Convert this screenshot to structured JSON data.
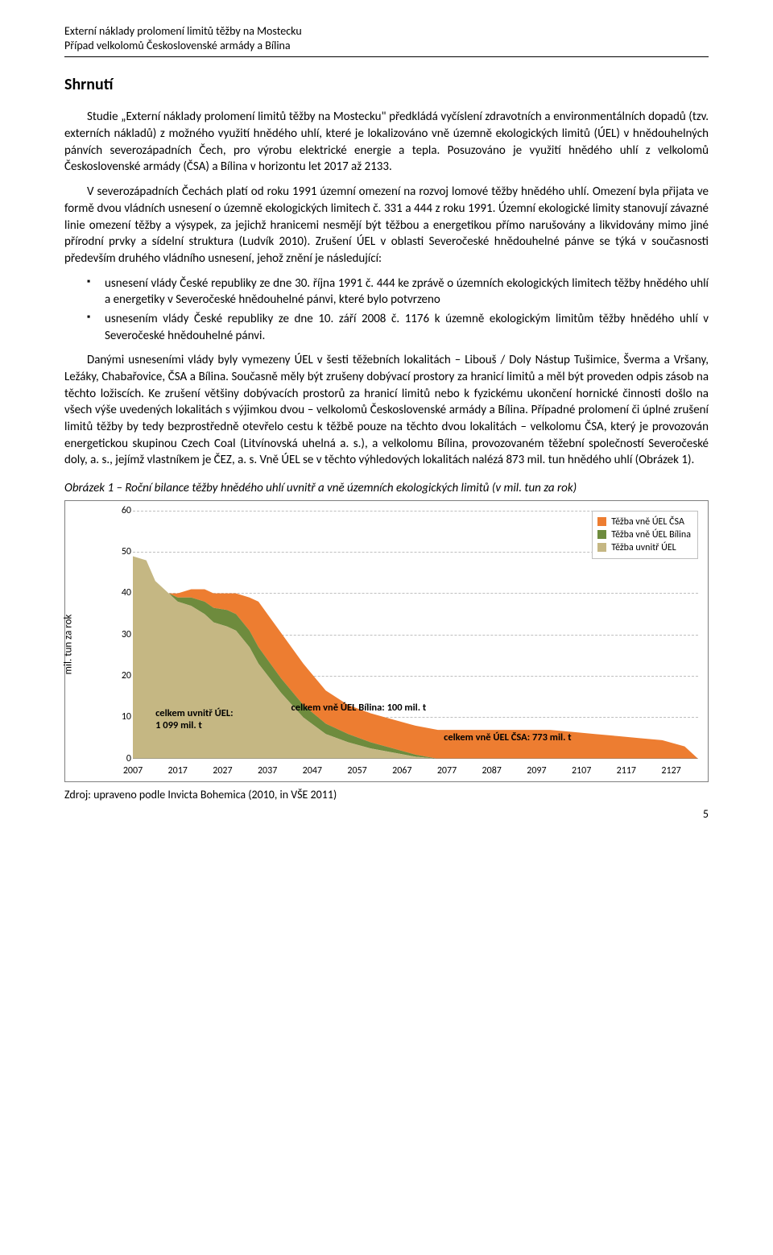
{
  "header": {
    "line1": "Externí náklady prolomení limitů těžby na Mostecku",
    "line2": "Případ velkolomů Československé armády a Bílina"
  },
  "title": "Shrnutí",
  "para1": "Studie „Externí náklady prolomení limitů těžby na Mostecku\" předkládá vyčíslení zdravotních a environmentálních dopadů (tzv. externích nákladů) z možného využití hnědého uhlí, které je lokalizováno vně územně ekologických limitů (ÚEL) v hnědouhelných pánvích severozápadních Čech, pro výrobu elektrické energie a tepla. Posuzováno je využití hnědého uhlí z velkolomů Československé armády (ČSA) a Bílina v horizontu let 2017 až 2133.",
  "para2": "V severozápadních Čechách platí od roku 1991 územní omezení na rozvoj lomové těžby hnědého uhlí. Omezení byla přijata ve formě dvou vládních usnesení o územně ekologických limitech č. 331 a 444 z roku 1991. Územní ekologické limity stanovují závazné linie omezení těžby a výsypek, za jejichž hranicemi nesmějí být těžbou a energetikou přímo narušovány a likvidovány mimo jiné přírodní prvky a sídelní struktura (Ludvík 2010). Zrušení ÚEL v oblasti Severočeské hnědouhelné pánve se týká v současnosti především druhého vládního usnesení, jehož znění je následující:",
  "bullet1": "usnesení vlády České republiky ze dne 30. října 1991 č. 444 ke zprávě o územních ekologických limitech těžby hnědého uhlí a energetiky v Severočeské hnědouhelné pánvi, které bylo potvrzeno",
  "bullet2": "usnesením vlády České republiky ze dne 10. září 2008 č. 1176 k územně ekologickým limitům těžby hnědého uhlí v Severočeské hnědouhelné pánvi.",
  "para3": "Danými usneseními vlády byly vymezeny ÚEL v šesti těžebních lokalitách – Libouš / Doly Nástup Tušimice, Šverma a Vršany, Ležáky, Chabařovice, ČSA a Bílina. Současně měly být zrušeny dobývací prostory za hranicí limitů a měl být proveden odpis zásob na těchto ložiscích. Ke zrušení většiny dobývacích prostorů za hranicí limitů nebo k fyzickému ukončení hornické činnosti došlo na všech výše uvedených lokalitách s výjimkou dvou – velkolomů Československé armády a Bílina. Případné prolomení či úplné zrušení limitů těžby by tedy bezprostředně otevřelo cestu k těžbě pouze na těchto dvou lokalitách – velkolomu ČSA, který je provozován energetickou skupinou Czech Coal (Litvínovská uhelná a. s.), a velkolomu Bílina, provozovaném těžební společností Severočeské doly, a. s., jejímž vlastníkem je ČEZ, a. s. Vně ÚEL se v těchto výhledových lokalitách nalézá 873 mil. tun hnědého uhlí (Obrázek 1).",
  "figcaption": "Obrázek 1 – Roční bilance těžby hnědého uhlí uvnitř a vně územních ekologických limitů (v mil. tun za rok)",
  "chart": {
    "type": "stacked-area",
    "ylabel": "mil. tun za rok",
    "ylim": [
      0,
      60
    ],
    "ytick_step": 10,
    "xlim": [
      2007,
      2133
    ],
    "xticks": [
      2007,
      2017,
      2027,
      2037,
      2047,
      2057,
      2067,
      2077,
      2087,
      2097,
      2107,
      2117,
      2127
    ],
    "legend": [
      {
        "label": "Těžba vně ÚEL ČSA",
        "color": "#ed7d31"
      },
      {
        "label": "Těžba vně ÚEL Bílina",
        "color": "#6e8b3d"
      },
      {
        "label": "Těžba uvnitř ÚEL",
        "color": "#c5b783"
      }
    ],
    "colors": {
      "inside": "#c5b783",
      "bilina": "#6e8b3d",
      "csa": "#ed7d31",
      "grid": "#bfbfbf",
      "border": "#7f7f7f",
      "bg": "#ffffff"
    },
    "annotations": [
      {
        "key": "ann_bilina",
        "text": "celkem vně ÚEL Bílina: 100 mil. t"
      },
      {
        "key": "ann_inside_l1",
        "text": "celkem uvnitř ÚEL:"
      },
      {
        "key": "ann_inside_l2",
        "text": "1 099 mil. t"
      },
      {
        "key": "ann_csa",
        "text": "celkem vně ÚEL ČSA: 773 mil. t"
      }
    ],
    "series": {
      "x": [
        2007,
        2010,
        2012,
        2015,
        2017,
        2020,
        2023,
        2025,
        2028,
        2030,
        2033,
        2035,
        2040,
        2045,
        2050,
        2055,
        2060,
        2065,
        2070,
        2075,
        2080,
        2085,
        2090,
        2095,
        2100,
        2105,
        2110,
        2115,
        2120,
        2125,
        2130,
        2133
      ],
      "inside": [
        49,
        48,
        43,
        40,
        38,
        37,
        35,
        33,
        32,
        31,
        27,
        23,
        16,
        10,
        6,
        4,
        2.5,
        1.5,
        0.5,
        0,
        0,
        0,
        0,
        0,
        0,
        0,
        0,
        0,
        0,
        0,
        0,
        0
      ],
      "bilina": [
        0,
        0,
        0,
        0,
        1,
        2,
        3,
        3.5,
        4,
        4,
        4,
        4,
        3.5,
        3,
        2.5,
        2,
        1.5,
        1,
        0.5,
        0,
        0,
        0,
        0,
        0,
        0,
        0,
        0,
        0,
        0,
        0,
        0,
        0
      ],
      "csa": [
        0,
        0,
        0,
        0,
        1,
        2,
        3,
        3.5,
        4,
        5,
        8,
        11,
        11,
        10,
        8,
        7,
        7,
        7,
        7,
        7,
        7,
        7,
        7,
        7,
        7,
        6.5,
        6,
        5.5,
        5,
        4.5,
        3,
        0
      ]
    }
  },
  "source": "Zdroj: upraveno podle Invicta Bohemica (2010, in VŠE 2011)",
  "pagenum": "5"
}
